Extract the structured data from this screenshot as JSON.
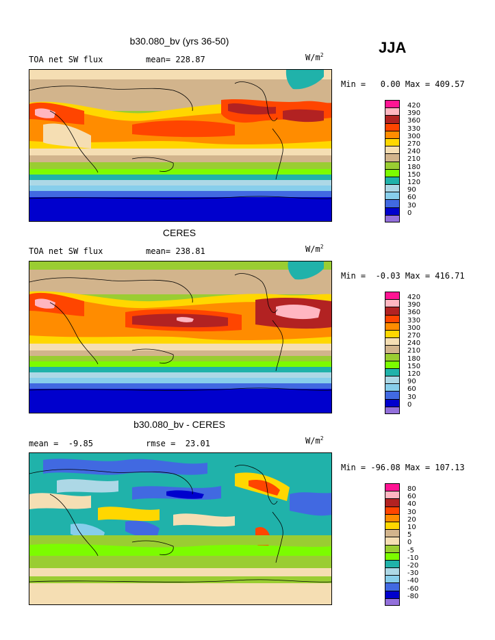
{
  "season": "JJA",
  "unit": "W/m",
  "unit_sup": "2",
  "panels": [
    {
      "title": "b30.080_bv (yrs 36-50)",
      "left_label": "TOA net SW flux",
      "mid_label": "mean= 228.87",
      "minmax": "Min =   0.00 Max = 409.57",
      "levels": [
        "420",
        "390",
        "360",
        "330",
        "300",
        "270",
        "240",
        "210",
        "180",
        "150",
        "120",
        "90",
        "60",
        "30",
        "0"
      ]
    },
    {
      "title": "CERES",
      "left_label": "TOA net SW flux",
      "mid_label": "mean= 238.81",
      "minmax": "Min =  -0.03 Max = 416.71",
      "levels": [
        "420",
        "390",
        "360",
        "330",
        "300",
        "270",
        "240",
        "210",
        "180",
        "150",
        "120",
        "90",
        "60",
        "30",
        "0"
      ]
    },
    {
      "title": "b30.080_bv - CERES",
      "left_label": "mean =  -9.85",
      "mid_label": "rmse =  23.01",
      "minmax": "Min = -96.08 Max = 107.13",
      "levels": [
        "80",
        "60",
        "40",
        "30",
        "20",
        "10",
        "5",
        "0",
        "-5",
        "-10",
        "-20",
        "-30",
        "-40",
        "-60",
        "-80"
      ]
    }
  ],
  "colors": {
    "scale": [
      "#ff1493",
      "#ffb6c1",
      "#b22222",
      "#ff4500",
      "#ff8c00",
      "#ffd700",
      "#f5deb3",
      "#d2b48c",
      "#9acd32",
      "#7cfc00",
      "#20b2aa",
      "#add8e6",
      "#87ceeb",
      "#4169e1",
      "#0000cd",
      "#9370db"
    ]
  },
  "chart_data": [
    {
      "type": "heatmap",
      "title": "b30.080_bv (yrs 36-50)",
      "variable": "TOA net SW flux",
      "season": "JJA",
      "units": "W/m2",
      "mean": 228.87,
      "min": 0.0,
      "max": 409.57,
      "contour_levels": [
        0,
        30,
        60,
        90,
        120,
        150,
        180,
        210,
        240,
        270,
        300,
        330,
        360,
        390,
        420
      ]
    },
    {
      "type": "heatmap",
      "title": "CERES",
      "variable": "TOA net SW flux",
      "season": "JJA",
      "units": "W/m2",
      "mean": 238.81,
      "min": -0.03,
      "max": 416.71,
      "contour_levels": [
        0,
        30,
        60,
        90,
        120,
        150,
        180,
        210,
        240,
        270,
        300,
        330,
        360,
        390,
        420
      ]
    },
    {
      "type": "heatmap",
      "title": "b30.080_bv - CERES",
      "season": "JJA",
      "units": "W/m2",
      "mean": -9.85,
      "rmse": 23.01,
      "min": -96.08,
      "max": 107.13,
      "contour_levels": [
        -80,
        -60,
        -40,
        -30,
        -20,
        -10,
        -5,
        0,
        5,
        10,
        20,
        30,
        40,
        60,
        80
      ]
    }
  ]
}
